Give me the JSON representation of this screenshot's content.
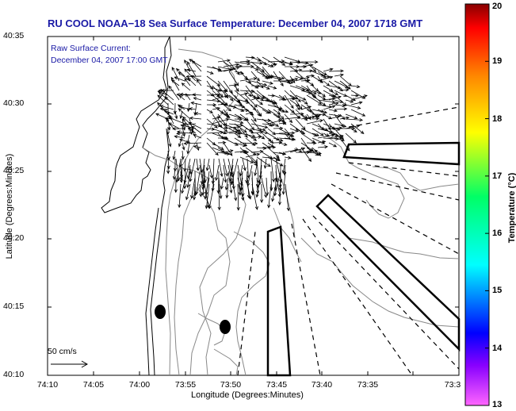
{
  "title": "RU COOL  NOAA−18  Sea Surface Temperature:  December 04, 2007 1718 GMT",
  "annotation": {
    "line1": "Raw Surface Current:",
    "line2": "December 04, 2007 17:00 GMT"
  },
  "axes": {
    "xlabel": "Longitude (Degrees:Minutes)",
    "ylabel": "Latitude (Degrees:Minutes)",
    "xticks": [
      "74:10",
      "74:05",
      "74:00",
      "73:55",
      "73:50",
      "73:45",
      "73:40",
      "73:35",
      "73:3"
    ],
    "yticks": [
      "40:35",
      "40:30",
      "40:25",
      "40:20",
      "40:15",
      "40:10"
    ]
  },
  "scale": {
    "label": "50 cm/s"
  },
  "colorbar": {
    "label": "Temperature (°C)",
    "ticks": [
      "20",
      "19",
      "18",
      "17",
      "16",
      "15",
      "14",
      "13"
    ],
    "min": 13,
    "max": 20,
    "colors": [
      "#ff66ff",
      "#0000ff",
      "#00ffff",
      "#00ff66",
      "#ffff00",
      "#ff8800",
      "#ff0000",
      "#880000"
    ]
  }
}
